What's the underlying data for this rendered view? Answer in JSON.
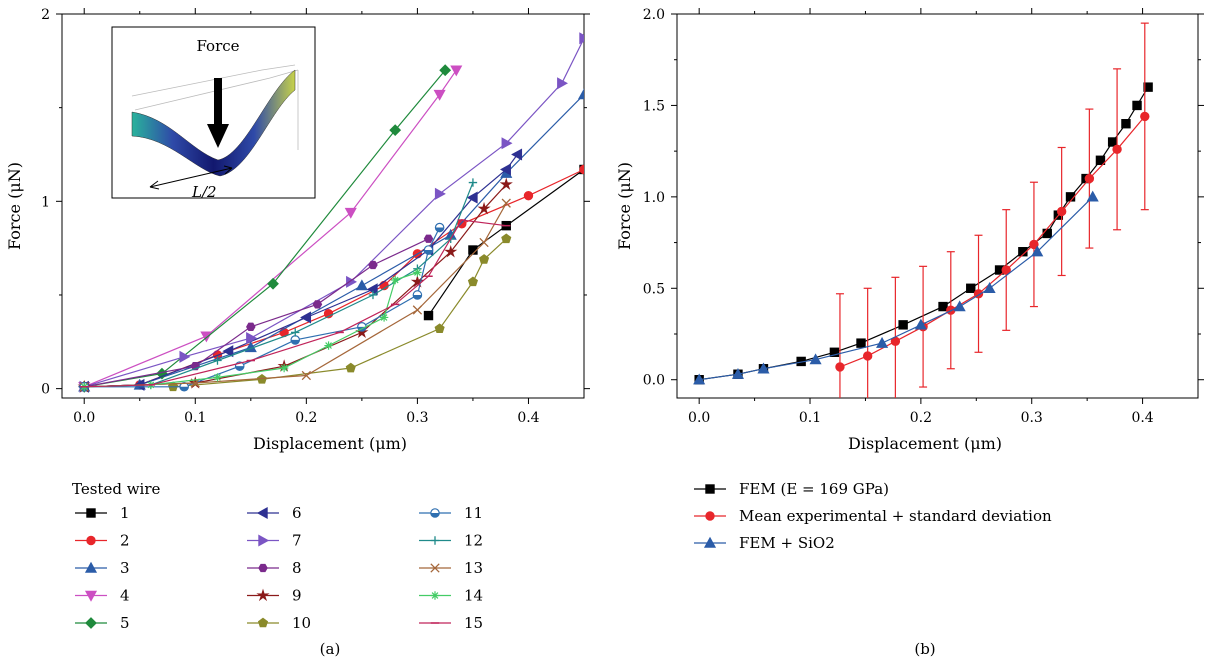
{
  "chart_data": [
    {
      "type": "line",
      "panel_label": "(a)",
      "xlabel": "Displacement (μm)",
      "ylabel": "Force (μN)",
      "xlim": [
        -0.02,
        0.45
      ],
      "ylim": [
        -0.05,
        2.0
      ],
      "xticks": [
        0.0,
        0.1,
        0.2,
        0.3,
        0.4
      ],
      "xtick_labels": [
        "0.0",
        "0.1",
        "0.2",
        "0.3",
        "0.4"
      ],
      "yticks": [
        0,
        1,
        2
      ],
      "ytick_labels": [
        "0",
        "1",
        "2"
      ],
      "legend": {
        "title": "Tested wire",
        "placement": "below"
      },
      "inset": {
        "label_force": "Force",
        "label_length": "L/2"
      },
      "series": [
        {
          "name": "1",
          "color": "#000000",
          "marker": "square",
          "x": [
            0.31,
            0.35,
            0.38,
            0.45
          ],
          "y": [
            0.39,
            0.74,
            0.87,
            1.17
          ]
        },
        {
          "name": "2",
          "color": "#e8262b",
          "marker": "circle",
          "x": [
            0.0,
            0.05,
            0.12,
            0.18,
            0.22,
            0.27,
            0.3,
            0.34,
            0.4,
            0.45
          ],
          "y": [
            0.01,
            0.02,
            0.18,
            0.3,
            0.4,
            0.55,
            0.72,
            0.88,
            1.03,
            1.17
          ]
        },
        {
          "name": "3",
          "color": "#2b5ca8",
          "marker": "triangle-up",
          "x": [
            0.0,
            0.05,
            0.15,
            0.25,
            0.33,
            0.38,
            0.45
          ],
          "y": [
            0.01,
            0.02,
            0.22,
            0.55,
            0.82,
            1.15,
            1.57
          ]
        },
        {
          "name": "4",
          "color": "#cc4fc2",
          "marker": "triangle-down",
          "x": [
            0.0,
            0.11,
            0.24,
            0.32,
            0.335
          ],
          "y": [
            0.01,
            0.28,
            0.94,
            1.57,
            1.7
          ]
        },
        {
          "name": "5",
          "color": "#1f8a3c",
          "marker": "diamond",
          "x": [
            0.0,
            0.07,
            0.17,
            0.28,
            0.325
          ],
          "y": [
            0.01,
            0.08,
            0.56,
            1.38,
            1.7
          ]
        },
        {
          "name": "6",
          "color": "#2e3192",
          "marker": "triangle-left",
          "x": [
            0.0,
            0.05,
            0.13,
            0.2,
            0.26,
            0.31,
            0.35,
            0.38,
            0.39
          ],
          "y": [
            0.01,
            0.02,
            0.2,
            0.38,
            0.53,
            0.74,
            1.02,
            1.17,
            1.25
          ]
        },
        {
          "name": "7",
          "color": "#7b55c4",
          "marker": "triangle-right",
          "x": [
            0.0,
            0.09,
            0.15,
            0.24,
            0.32,
            0.38,
            0.43,
            0.45
          ],
          "y": [
            0.01,
            0.17,
            0.27,
            0.57,
            1.04,
            1.31,
            1.63,
            1.87
          ]
        },
        {
          "name": "8",
          "color": "#7b2a8c",
          "marker": "hexagon",
          "x": [
            0.0,
            0.1,
            0.15,
            0.21,
            0.26,
            0.31
          ],
          "y": [
            0.01,
            0.12,
            0.33,
            0.45,
            0.66,
            0.8
          ]
        },
        {
          "name": "9",
          "color": "#8b1a1a",
          "marker": "star",
          "x": [
            0.0,
            0.1,
            0.18,
            0.25,
            0.3,
            0.33,
            0.36,
            0.38
          ],
          "y": [
            0.01,
            0.03,
            0.12,
            0.3,
            0.57,
            0.73,
            0.96,
            1.09
          ]
        },
        {
          "name": "10",
          "color": "#8a8a2b",
          "marker": "pentagon",
          "x": [
            0.08,
            0.16,
            0.24,
            0.32,
            0.35,
            0.36,
            0.38
          ],
          "y": [
            0.01,
            0.05,
            0.11,
            0.32,
            0.57,
            0.69,
            0.8
          ]
        },
        {
          "name": "11",
          "color": "#2f6fb0",
          "marker": "circle-half",
          "x": [
            0.0,
            0.09,
            0.14,
            0.19,
            0.25,
            0.3,
            0.31,
            0.32
          ],
          "y": [
            0.01,
            0.01,
            0.12,
            0.26,
            0.33,
            0.5,
            0.74,
            0.86
          ]
        },
        {
          "name": "12",
          "color": "#1f8a8a",
          "marker": "plus",
          "x": [
            0.0,
            0.06,
            0.12,
            0.19,
            0.26,
            0.3,
            0.33,
            0.35
          ],
          "y": [
            0.01,
            0.02,
            0.15,
            0.3,
            0.5,
            0.64,
            0.8,
            1.1
          ]
        },
        {
          "name": "13",
          "color": "#a5673a",
          "marker": "x",
          "x": [
            0.0,
            0.1,
            0.2,
            0.3,
            0.36,
            0.38
          ],
          "y": [
            0.01,
            0.03,
            0.07,
            0.42,
            0.78,
            0.99
          ]
        },
        {
          "name": "14",
          "color": "#44cc66",
          "marker": "asterisk",
          "x": [
            0.0,
            0.06,
            0.12,
            0.18,
            0.22,
            0.27,
            0.28,
            0.3
          ],
          "y": [
            0.01,
            0.02,
            0.06,
            0.11,
            0.23,
            0.38,
            0.58,
            0.62
          ]
        },
        {
          "name": "15",
          "color": "#c0245a",
          "marker": "dash",
          "x": [
            0.0,
            0.06,
            0.15,
            0.23,
            0.28,
            0.31,
            0.34,
            0.38
          ],
          "y": [
            0.01,
            0.02,
            0.15,
            0.3,
            0.45,
            0.6,
            0.9,
            0.87
          ]
        }
      ]
    },
    {
      "type": "line",
      "panel_label": "(b)",
      "xlabel": "Displacement (μm)",
      "ylabel": "Force (μN)",
      "xlim": [
        -0.02,
        0.45
      ],
      "ylim": [
        -0.1,
        2.0
      ],
      "xticks": [
        0.0,
        0.1,
        0.2,
        0.3,
        0.4
      ],
      "xtick_labels": [
        "0.0",
        "0.1",
        "0.2",
        "0.3",
        "0.4"
      ],
      "yticks": [
        0.0,
        0.5,
        1.0,
        1.5,
        2.0
      ],
      "ytick_labels": [
        "0.0",
        "0.5",
        "1.0",
        "1.5",
        "2.0"
      ],
      "legend": {
        "placement": "below"
      },
      "series": [
        {
          "name": "FEM (E = 169 GPa)",
          "color": "#000000",
          "marker": "square",
          "x": [
            0.0,
            0.035,
            0.058,
            0.092,
            0.122,
            0.146,
            0.184,
            0.22,
            0.245,
            0.271,
            0.292,
            0.314,
            0.324,
            0.335,
            0.349,
            0.362,
            0.373,
            0.385,
            0.395,
            0.405
          ],
          "y": [
            0.0,
            0.03,
            0.06,
            0.1,
            0.15,
            0.2,
            0.3,
            0.4,
            0.5,
            0.6,
            0.7,
            0.8,
            0.9,
            1.0,
            1.1,
            1.2,
            1.3,
            1.4,
            1.5,
            1.6
          ]
        },
        {
          "name": "Mean experimental + standard deviation",
          "color": "#e8262b",
          "marker": "circle",
          "x": [
            0.127,
            0.152,
            0.177,
            0.202,
            0.227,
            0.252,
            0.277,
            0.302,
            0.327,
            0.352,
            0.377,
            0.402
          ],
          "y": [
            0.07,
            0.13,
            0.21,
            0.29,
            0.38,
            0.47,
            0.6,
            0.74,
            0.92,
            1.1,
            1.26,
            1.44
          ],
          "err": [
            0.4,
            0.37,
            0.35,
            0.33,
            0.32,
            0.32,
            0.33,
            0.34,
            0.35,
            0.38,
            0.44,
            0.51
          ]
        },
        {
          "name": "FEM + SiO2",
          "color": "#2b5ca8",
          "marker": "triangle-up",
          "x": [
            0.0,
            0.035,
            0.058,
            0.105,
            0.165,
            0.2,
            0.235,
            0.262,
            0.305,
            0.355
          ],
          "y": [
            0.0,
            0.03,
            0.06,
            0.11,
            0.2,
            0.3,
            0.4,
            0.5,
            0.7,
            1.0
          ]
        }
      ]
    }
  ]
}
